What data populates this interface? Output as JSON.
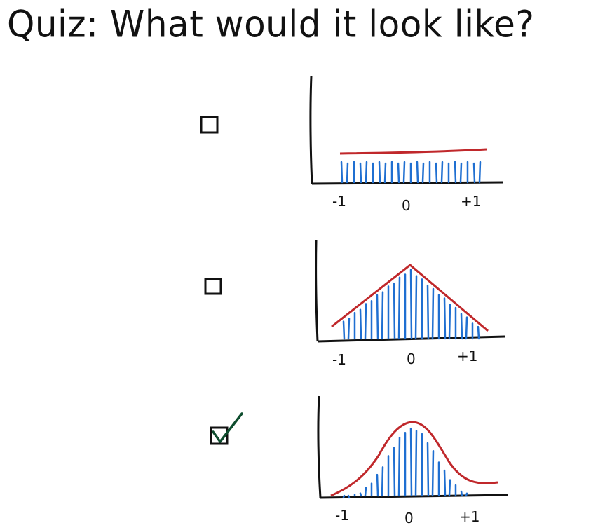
{
  "title": "Quiz: What would it look like?",
  "colors": {
    "ink": "#111111",
    "curve": "#c0282b",
    "bars": "#1f6fd1",
    "check": "#0e4d2e"
  },
  "options": [
    {
      "id": "uniform",
      "checked": false,
      "shape": "uniform",
      "tick_labels": [
        "-1",
        "0",
        "+1"
      ]
    },
    {
      "id": "triangular",
      "checked": false,
      "shape": "triangular",
      "tick_labels": [
        "-1",
        "0",
        "+1"
      ]
    },
    {
      "id": "bell",
      "checked": true,
      "shape": "bell",
      "tick_labels": [
        "-1",
        "0",
        "+1"
      ]
    }
  ]
}
